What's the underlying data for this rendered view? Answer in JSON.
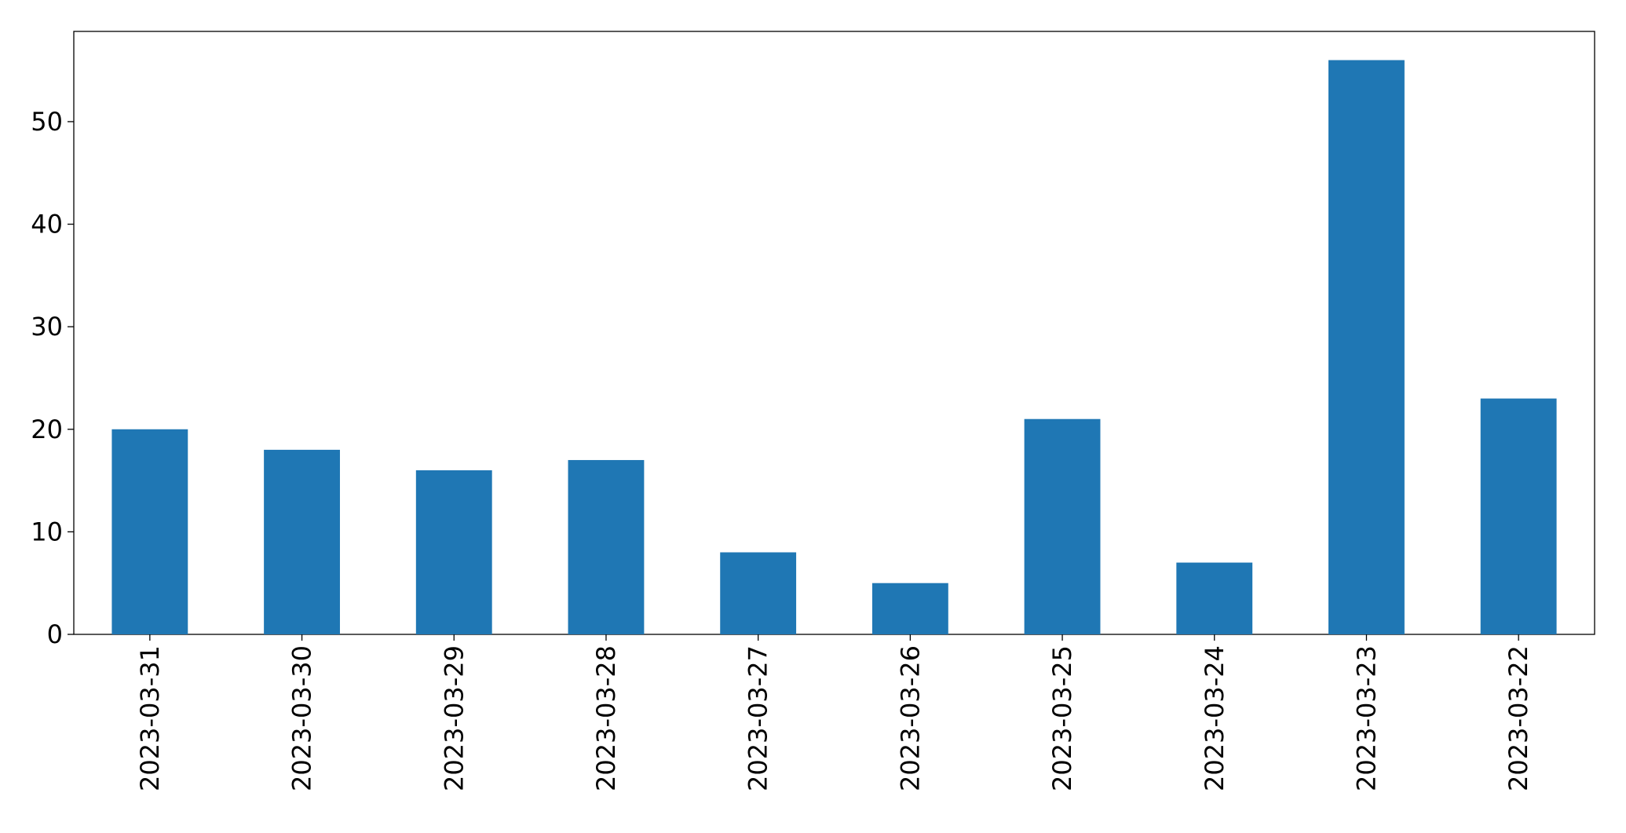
{
  "chart_data": {
    "type": "bar",
    "categories": [
      "2023-03-31",
      "2023-03-30",
      "2023-03-29",
      "2023-03-28",
      "2023-03-27",
      "2023-03-26",
      "2023-03-25",
      "2023-03-24",
      "2023-03-23",
      "2023-03-22"
    ],
    "values": [
      20,
      18,
      16,
      17,
      8,
      5,
      21,
      7,
      56,
      23
    ],
    "color": "#1f77b4",
    "ylim": [
      0,
      58.8
    ],
    "yticks": [
      0,
      10,
      20,
      30,
      40,
      50
    ],
    "grid": false
  }
}
